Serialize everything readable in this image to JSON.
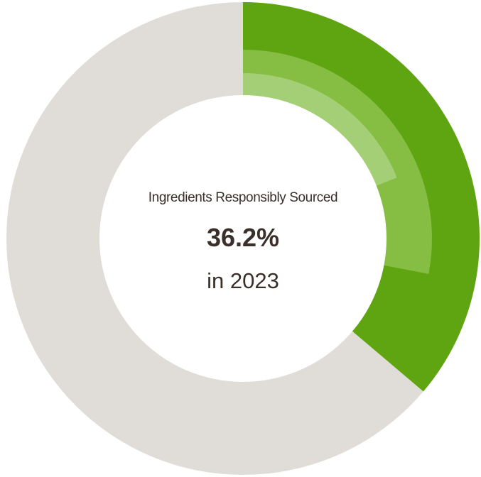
{
  "chart_data": {
    "type": "pie",
    "variant": "donut-radial",
    "title": "Ingredients Responsibly Sourced",
    "value_label": "36.2%",
    "subtitle": "in 2023",
    "rings": [
      {
        "value": 36.2,
        "max": 100,
        "color": "#5fa511"
      },
      {
        "value": 28.0,
        "max": 100,
        "color": "#86bd43"
      },
      {
        "value": 19.0,
        "max": 100,
        "color": "#a4cf77"
      }
    ],
    "track_color": "#e0ddd8",
    "start_angle": "top",
    "direction": "clockwise"
  }
}
